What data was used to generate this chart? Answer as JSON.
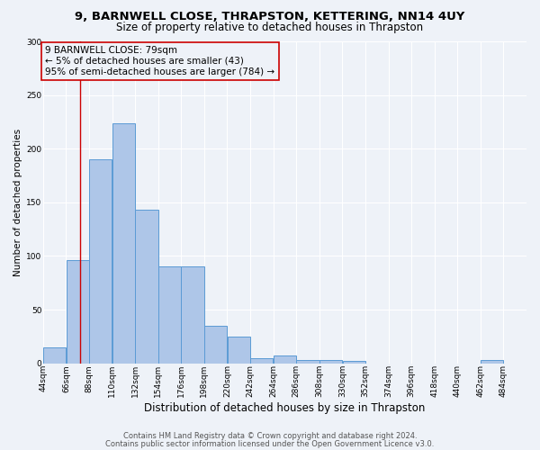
{
  "title1": "9, BARNWELL CLOSE, THRAPSTON, KETTERING, NN14 4UY",
  "title2": "Size of property relative to detached houses in Thrapston",
  "xlabel": "Distribution of detached houses by size in Thrapston",
  "ylabel": "Number of detached properties",
  "bar_heights": [
    15,
    96,
    190,
    224,
    143,
    90,
    90,
    35,
    25,
    5,
    7,
    3,
    3,
    2,
    0,
    0,
    0,
    0,
    0,
    3
  ],
  "bin_edges": [
    44,
    66,
    88,
    110,
    132,
    154,
    176,
    198,
    220,
    242,
    264,
    286,
    308,
    330,
    352,
    374,
    396,
    418,
    440,
    462,
    484
  ],
  "tick_labels": [
    "44sqm",
    "66sqm",
    "88sqm",
    "110sqm",
    "132sqm",
    "154sqm",
    "176sqm",
    "198sqm",
    "220sqm",
    "242sqm",
    "264sqm",
    "286sqm",
    "308sqm",
    "330sqm",
    "352sqm",
    "374sqm",
    "396sqm",
    "418sqm",
    "440sqm",
    "462sqm",
    "484sqm"
  ],
  "bar_color": "#aec6e8",
  "bar_edge_color": "#5b9bd5",
  "red_line_x": 79,
  "annotation_text": "9 BARNWELL CLOSE: 79sqm\n← 5% of detached houses are smaller (43)\n95% of semi-detached houses are larger (784) →",
  "ylim": [
    0,
    300
  ],
  "yticks": [
    0,
    50,
    100,
    150,
    200,
    250,
    300
  ],
  "footer1": "Contains HM Land Registry data © Crown copyright and database right 2024.",
  "footer2": "Contains public sector information licensed under the Open Government Licence v3.0.",
  "background_color": "#eef2f8",
  "grid_color": "#ffffff",
  "title1_fontsize": 9.5,
  "title2_fontsize": 8.5,
  "xlabel_fontsize": 8.5,
  "ylabel_fontsize": 7.5,
  "tick_fontsize": 6.5,
  "annotation_fontsize": 7.5,
  "footer_fontsize": 6.0
}
